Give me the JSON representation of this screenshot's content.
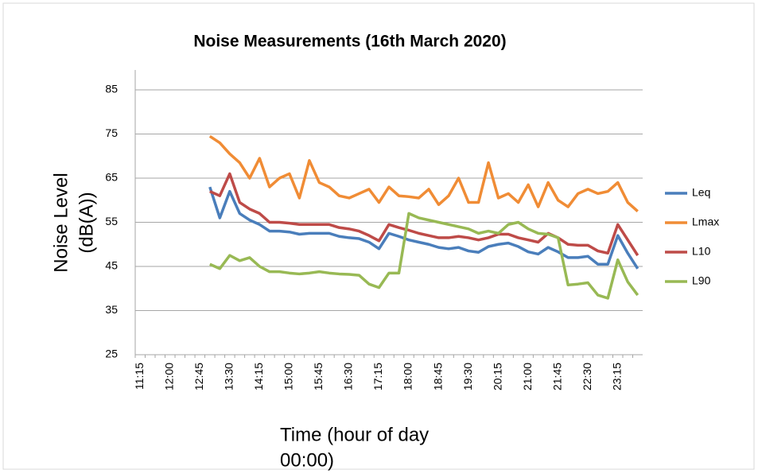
{
  "chart_data": {
    "type": "line",
    "title": "Noise Measurements (16th March 2020)",
    "y_label_lines": [
      "Noise Level",
      "(dB(A))"
    ],
    "x_label_lines": [
      "Time (hour of day",
      "00:00)"
    ],
    "categories": [
      "11:15",
      null,
      null,
      "12:00",
      null,
      null,
      "12:45",
      null,
      null,
      "13:30",
      null,
      null,
      "14:15",
      null,
      null,
      "15:00",
      null,
      null,
      "15:45",
      null,
      null,
      "16:30",
      null,
      null,
      "17:15",
      null,
      null,
      "18:00",
      null,
      null,
      "18:45",
      null,
      null,
      "19:30",
      null,
      null,
      "20:15",
      null,
      null,
      "21:00",
      null,
      null,
      "21:45",
      null,
      null,
      "22:30",
      null,
      null,
      "23:15",
      null,
      null
    ],
    "ylim": [
      25,
      85
    ],
    "yticks": [
      25,
      35,
      45,
      55,
      65,
      75,
      85
    ],
    "grid": true,
    "legend": "right",
    "series": [
      {
        "name": "Leq",
        "color": "#4a7ebb",
        "values": [
          null,
          null,
          null,
          null,
          null,
          null,
          null,
          63,
          56,
          62,
          57,
          55.5,
          54.5,
          53,
          53,
          52.8,
          52.3,
          52.5,
          52.5,
          52.5,
          51.8,
          51.5,
          51.3,
          50.5,
          49,
          52.5,
          51.8,
          51,
          50.5,
          50,
          49.3,
          49,
          49.3,
          48.5,
          48.2,
          49.5,
          50,
          50.3,
          49.5,
          48.3,
          47.8,
          49.3,
          48.3,
          47,
          47,
          47.3,
          45.5,
          45.5,
          52,
          48,
          44.5
        ]
      },
      {
        "name": "Lmax",
        "color": "#f08c35",
        "values": [
          null,
          null,
          null,
          null,
          null,
          null,
          null,
          74.5,
          73,
          70.5,
          68.5,
          65,
          69.5,
          63,
          65,
          66,
          60.5,
          69,
          64,
          63,
          61,
          60.5,
          61.5,
          62.5,
          59.5,
          63,
          61,
          60.8,
          60.5,
          62.5,
          59,
          61,
          65,
          59.5,
          59.5,
          68.5,
          60.5,
          61.5,
          59.5,
          63.5,
          58.5,
          64,
          60,
          58.5,
          61.5,
          62.5,
          61.5,
          62,
          64,
          59.5,
          57.5
        ]
      },
      {
        "name": "L10",
        "color": "#be4b48",
        "values": [
          null,
          null,
          null,
          null,
          null,
          null,
          null,
          62,
          61,
          66,
          59.5,
          58,
          57,
          55,
          55,
          54.8,
          54.5,
          54.5,
          54.5,
          54.5,
          53.8,
          53.5,
          53,
          52,
          50.8,
          54.5,
          53.8,
          53.2,
          52.5,
          52,
          51.5,
          51.5,
          51.8,
          51.5,
          51,
          51.5,
          52.3,
          52.3,
          51.5,
          51,
          50.5,
          52.5,
          51.5,
          50,
          49.8,
          49.8,
          48.5,
          48,
          54.5,
          51,
          47.5
        ]
      },
      {
        "name": "L90",
        "color": "#98b954",
        "values": [
          null,
          null,
          null,
          null,
          null,
          null,
          null,
          45.5,
          44.5,
          47.5,
          46.3,
          47,
          45,
          43.8,
          43.8,
          43.5,
          43.3,
          43.5,
          43.8,
          43.5,
          43.3,
          43.2,
          43,
          41,
          40.2,
          43.5,
          43.5,
          57,
          56,
          55.5,
          55,
          54.5,
          54,
          53.5,
          52.5,
          53,
          52.5,
          54.5,
          55,
          53.5,
          52.5,
          52.3,
          51.5,
          40.8,
          41,
          41.3,
          38.5,
          37.8,
          46.5,
          41.5,
          38.5
        ]
      }
    ]
  }
}
